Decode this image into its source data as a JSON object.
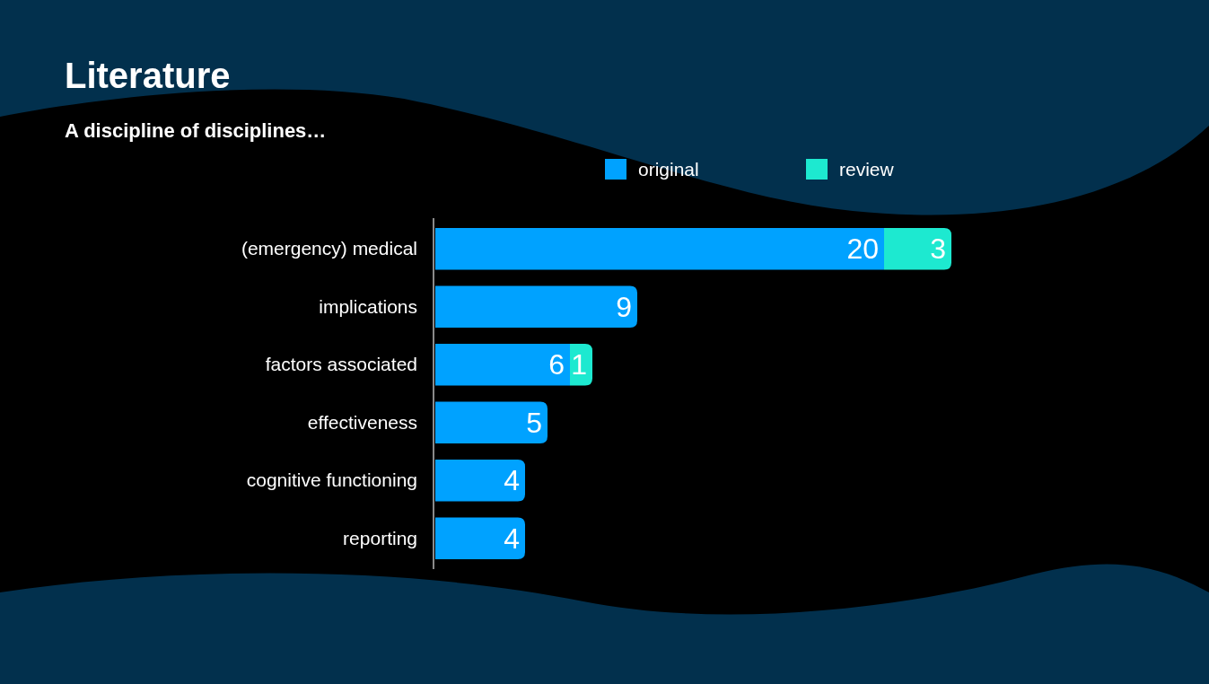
{
  "chart_data": {
    "type": "bar",
    "orientation": "horizontal",
    "stacked": true,
    "title": "Literature",
    "subtitle": "A discipline of disciplines…",
    "categories": [
      "(emergency) medical",
      "implications",
      "factors associated",
      "effectiveness",
      "cognitive functioning",
      "reporting"
    ],
    "series": [
      {
        "name": "original",
        "color": "#00a2ff",
        "values": [
          20,
          9,
          6,
          5,
          4,
          4
        ]
      },
      {
        "name": "review",
        "color": "#1de9d0",
        "values": [
          3,
          null,
          1,
          null,
          null,
          null
        ]
      }
    ],
    "data_labels": true,
    "legend": "top",
    "grid": false
  }
}
